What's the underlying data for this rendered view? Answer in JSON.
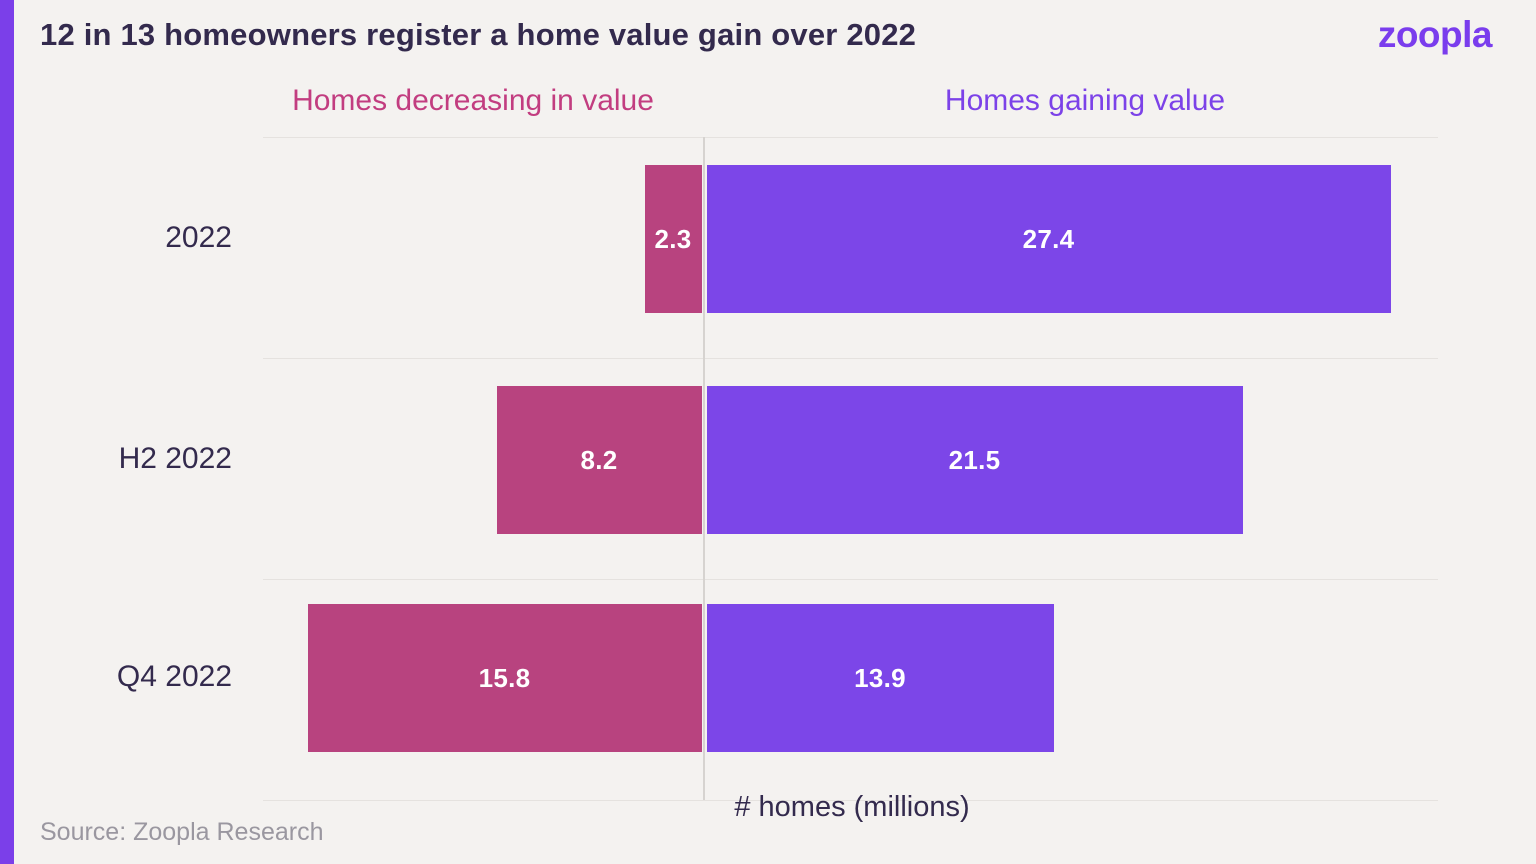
{
  "header": {
    "title": "12 in 13 homeowners register a home value gain over 2022",
    "logo_text": "zoopla"
  },
  "legend": {
    "decreasing_label": "Homes decreasing in value",
    "gaining_label": "Homes gaining value"
  },
  "axis": {
    "xlabel": "# homes (millions)"
  },
  "source_note": "Source: Zoopla Research",
  "colors": {
    "background": "#f4f2f0",
    "accent_strip": "#7b3fe9",
    "logo": "#7a3ded",
    "title_text": "#332a4d",
    "decreasing_bar": "#b8437f",
    "gaining_bar": "#7c46e8",
    "legend_decreasing_text": "#c23d80",
    "legend_gaining_text": "#7c42e8",
    "bar_value_text": "#ffffff",
    "gridline": "#e5e2df",
    "axis_line": "#d6d3d0",
    "source_text": "#9a97a0"
  },
  "chart_data": {
    "type": "bar",
    "orientation": "horizontal-diverging",
    "title": "12 in 13 homeowners register a home value gain over 2022",
    "categories": [
      "2022",
      "H2 2022",
      "Q4 2022"
    ],
    "series": [
      {
        "name": "Homes decreasing in value",
        "direction": "left",
        "color": "#b8437f",
        "values": [
          2.3,
          8.2,
          15.8
        ]
      },
      {
        "name": "Homes gaining value",
        "direction": "right",
        "color": "#7c46e8",
        "values": [
          27.4,
          21.5,
          13.9
        ]
      }
    ],
    "value_labels": {
      "decreasing": [
        "2.3",
        "8.2",
        "15.8"
      ],
      "gaining": [
        "27.4",
        "21.5",
        "13.9"
      ]
    },
    "xlabel": "# homes (millions)",
    "value_unit": "millions of homes",
    "grid": "row separators only",
    "legend_position": "top"
  }
}
